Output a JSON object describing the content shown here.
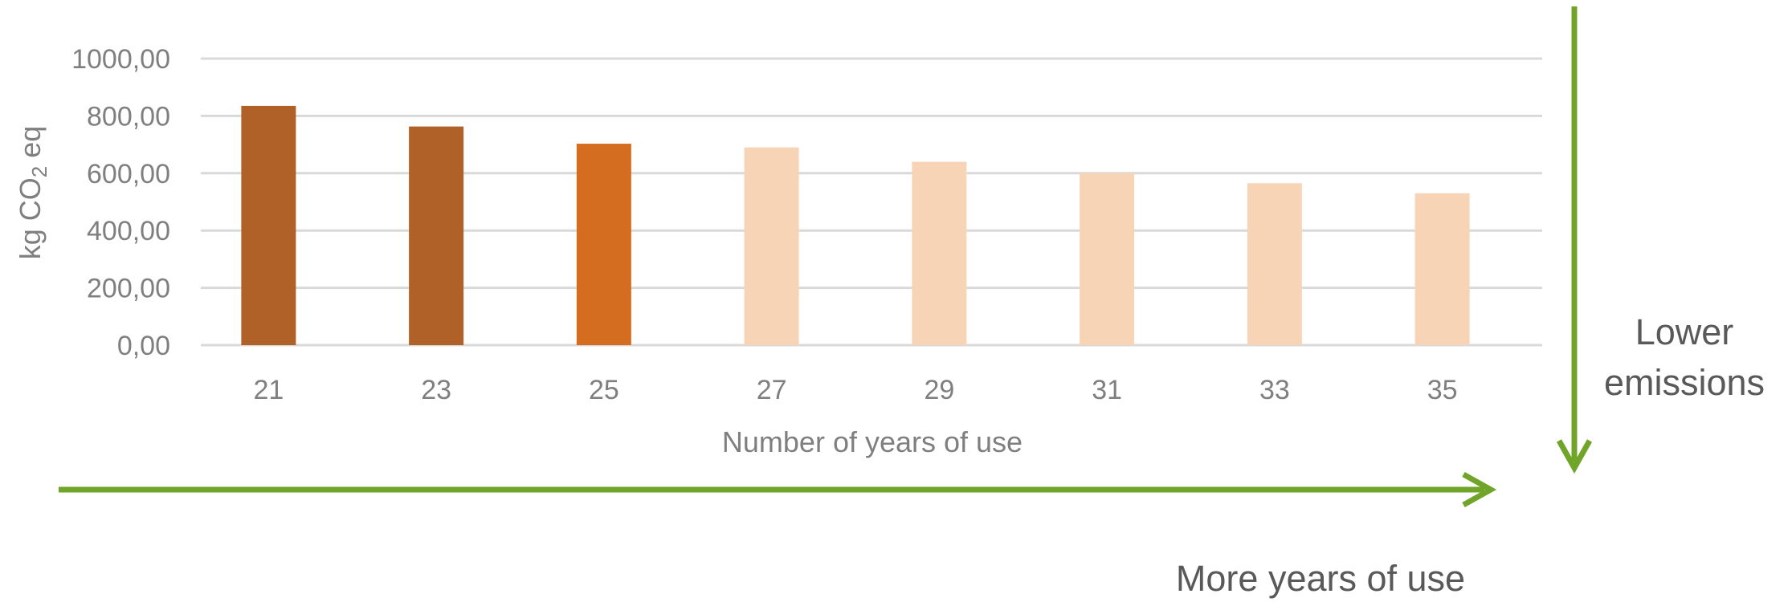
{
  "chart_data": {
    "type": "bar",
    "categories": [
      "21",
      "23",
      "25",
      "27",
      "29",
      "31",
      "33",
      "35"
    ],
    "values": [
      835,
      763,
      703,
      690,
      640,
      600,
      565,
      530
    ],
    "bar_colors": [
      "#b06128",
      "#b06128",
      "#d56d20",
      "#f8d4b6",
      "#f8d4b6",
      "#f8d4b6",
      "#f8d4b6",
      "#f8d4b6"
    ],
    "ylim": [
      0,
      1000
    ],
    "yticks": [
      0,
      200,
      400,
      600,
      800,
      1000
    ],
    "ytick_labels": [
      "0,00",
      "200,00",
      "400,00",
      "600,00",
      "800,00",
      "1000,00"
    ],
    "xlabel": "Number of years of use",
    "ylabel": {
      "main": "kg CO",
      "sub": "2",
      "rest": " eq"
    },
    "grid": true,
    "legend": "none"
  },
  "annotations": {
    "lower_emissions_line1": "Lower",
    "lower_emissions_line2": "emissions",
    "more_years": "More years of use"
  },
  "colors": {
    "arrow": "#70a52a",
    "grid": "#d9d9d9",
    "text": "#7f7f7f",
    "annotation_text": "#595959"
  }
}
